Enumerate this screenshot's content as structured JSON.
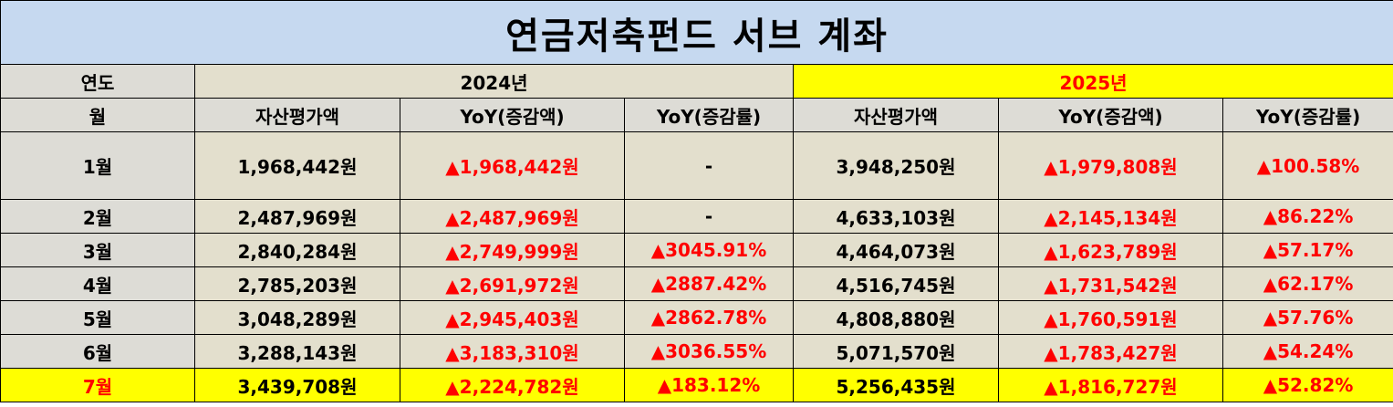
{
  "title": "연금저축펀드 서브 계좌",
  "header": {
    "year_label": "연도",
    "month_label": "월",
    "year_2024": "2024년",
    "year_2025": "2025년",
    "columns": [
      "자산평가액",
      "YoY(증감액)",
      "YoY(증감률)",
      "자산평가액",
      "YoY(증감액)",
      "YoY(증감률)"
    ]
  },
  "rows": [
    {
      "month": "1월",
      "a24": "1,968,442원",
      "d24": "▲1,968,442원",
      "p24": "-",
      "a25": "3,948,250원",
      "d25": "▲1,979,808원",
      "p25": "▲100.58%"
    },
    {
      "month": "2월",
      "a24": "2,487,969원",
      "d24": "▲2,487,969원",
      "p24": "-",
      "a25": "4,633,103원",
      "d25": "▲2,145,134원",
      "p25": "▲86.22%"
    },
    {
      "month": "3월",
      "a24": "2,840,284원",
      "d24": "▲2,749,999원",
      "p24": "▲3045.91%",
      "a25": "4,464,073원",
      "d25": "▲1,623,789원",
      "p25": "▲57.17%"
    },
    {
      "month": "4월",
      "a24": "2,785,203원",
      "d24": "▲2,691,972원",
      "p24": "▲2887.42%",
      "a25": "4,516,745원",
      "d25": "▲1,731,542원",
      "p25": "▲62.17%"
    },
    {
      "month": "5월",
      "a24": "3,048,289원",
      "d24": "▲2,945,403원",
      "p24": "▲2862.78%",
      "a25": "4,808,880원",
      "d25": "▲1,760,591원",
      "p25": "▲57.76%"
    },
    {
      "month": "6월",
      "a24": "3,288,143원",
      "d24": "▲3,183,310원",
      "p24": "▲3036.55%",
      "a25": "5,071,570원",
      "d25": "▲1,783,427원",
      "p25": "▲54.24%"
    },
    {
      "month": "7월",
      "a24": "3,439,708원",
      "d24": "▲2,224,782원",
      "p24": "▲183.12%",
      "a25": "5,256,435원",
      "d25": "▲1,816,727원",
      "p25": "▲52.82%"
    }
  ],
  "colors": {
    "title_bg": "#c6d9f0",
    "header_bg": "#dddcd6",
    "cell_bg": "#e3dfcd",
    "highlight": "#ffff00",
    "increase": "#ff0000"
  }
}
